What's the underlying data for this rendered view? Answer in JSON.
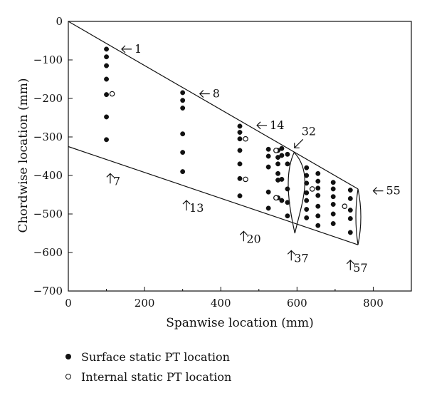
{
  "chart_data": {
    "type": "scatter",
    "xlabel": "Spanwise location (mm)",
    "ylabel": "Chordwise location (mm)",
    "xlim": [
      0,
      900
    ],
    "ylim": [
      -700,
      0
    ],
    "xticks": [
      "0",
      "200",
      "400",
      "600",
      "800"
    ],
    "xtick_values": [
      0,
      200,
      400,
      600,
      800
    ],
    "yticks": [
      "0",
      "−100",
      "−200",
      "−300",
      "−400",
      "−500",
      "−600",
      "−700"
    ],
    "ytick_values": [
      0,
      -100,
      -200,
      -300,
      -400,
      -500,
      -600,
      -700
    ],
    "grid": false,
    "legend_position": "bottom-left",
    "series": [
      {
        "name": "Surface static PT location",
        "marker": "filled",
        "points": [
          [
            100,
            -72
          ],
          [
            100,
            -92
          ],
          [
            100,
            -115
          ],
          [
            100,
            -150
          ],
          [
            100,
            -190
          ],
          [
            100,
            -248
          ],
          [
            100,
            -307
          ],
          [
            300,
            -185
          ],
          [
            300,
            -205
          ],
          [
            300,
            -225
          ],
          [
            300,
            -292
          ],
          [
            300,
            -340
          ],
          [
            300,
            -390
          ],
          [
            450,
            -272
          ],
          [
            450,
            -288
          ],
          [
            450,
            -305
          ],
          [
            450,
            -335
          ],
          [
            450,
            -370
          ],
          [
            450,
            -408
          ],
          [
            450,
            -453
          ],
          [
            525,
            -332
          ],
          [
            525,
            -350
          ],
          [
            525,
            -378
          ],
          [
            525,
            -443
          ],
          [
            525,
            -485
          ],
          [
            550,
            -335
          ],
          [
            550,
            -353
          ],
          [
            550,
            -370
          ],
          [
            550,
            -395
          ],
          [
            550,
            -412
          ],
          [
            550,
            -458
          ],
          [
            560,
            -330
          ],
          [
            560,
            -348
          ],
          [
            560,
            -410
          ],
          [
            560,
            -465
          ],
          [
            575,
            -345
          ],
          [
            575,
            -370
          ],
          [
            575,
            -435
          ],
          [
            575,
            -470
          ],
          [
            575,
            -505
          ],
          [
            625,
            -380
          ],
          [
            625,
            -400
          ],
          [
            625,
            -420
          ],
          [
            625,
            -445
          ],
          [
            625,
            -465
          ],
          [
            625,
            -488
          ],
          [
            625,
            -510
          ],
          [
            655,
            -395
          ],
          [
            655,
            -415
          ],
          [
            655,
            -433
          ],
          [
            655,
            -452
          ],
          [
            655,
            -480
          ],
          [
            655,
            -505
          ],
          [
            655,
            -530
          ],
          [
            695,
            -418
          ],
          [
            695,
            -435
          ],
          [
            695,
            -455
          ],
          [
            695,
            -475
          ],
          [
            695,
            -500
          ],
          [
            695,
            -525
          ],
          [
            740,
            -438
          ],
          [
            740,
            -460
          ],
          [
            740,
            -490
          ],
          [
            740,
            -512
          ],
          [
            740,
            -548
          ]
        ]
      },
      {
        "name": "Internal static PT location",
        "marker": "open",
        "points": [
          [
            115,
            -188
          ],
          [
            465,
            -305
          ],
          [
            465,
            -410
          ],
          [
            545,
            -335
          ],
          [
            545,
            -458
          ],
          [
            640,
            -435
          ],
          [
            725,
            -480
          ]
        ]
      }
    ],
    "shape": {
      "leading_edge": [
        [
          0,
          0
        ],
        [
          760,
          -435
        ]
      ],
      "trailing_edge": [
        [
          0,
          -325
        ],
        [
          760,
          -580
        ]
      ],
      "tip_edge": [
        [
          760,
          -435
        ],
        [
          760,
          -580
        ]
      ],
      "mid_section": {
        "x": 600,
        "top": -340,
        "bottom": -550
      }
    },
    "annotations": [
      {
        "text": "1",
        "x": 140,
        "y": -72,
        "arrow": "left"
      },
      {
        "text": "8",
        "x": 345,
        "y": -188,
        "arrow": "left"
      },
      {
        "text": "14",
        "x": 495,
        "y": -270,
        "arrow": "left"
      },
      {
        "text": "32",
        "x": 612,
        "y": -295,
        "arrow": "down-left"
      },
      {
        "text": "55",
        "x": 800,
        "y": -440,
        "arrow": "left"
      },
      {
        "text": "7",
        "x": 110,
        "y": -395,
        "arrow": "up"
      },
      {
        "text": "13",
        "x": 310,
        "y": -465,
        "arrow": "up"
      },
      {
        "text": "20",
        "x": 460,
        "y": -545,
        "arrow": "up"
      },
      {
        "text": "37",
        "x": 585,
        "y": -595,
        "arrow": "up"
      },
      {
        "text": "57",
        "x": 740,
        "y": -620,
        "arrow": "up"
      }
    ]
  },
  "legend": {
    "items": [
      {
        "label": "Surface static PT location",
        "marker": "filled"
      },
      {
        "label": "Internal static PT location",
        "marker": "open"
      }
    ]
  }
}
